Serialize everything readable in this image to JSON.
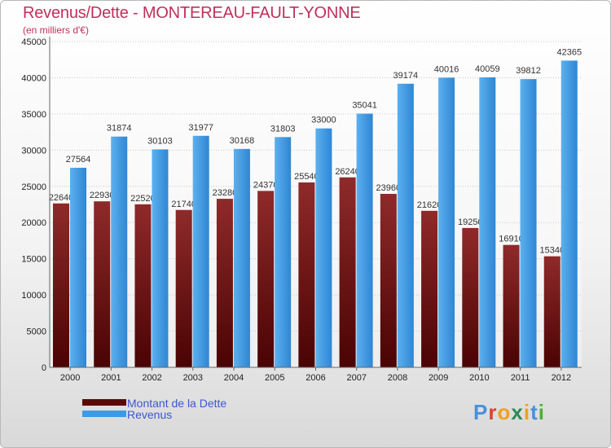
{
  "title": "Revenus/Dette - MONTEREAU-FAULT-YONNE",
  "subtitle": "(en milliers d'€)",
  "logo": {
    "letters": [
      "P",
      "r",
      "o",
      "x",
      "i",
      "t",
      "i"
    ],
    "colors": [
      "#4a90d9",
      "#d7452f",
      "#f0a020",
      "#2e8b57",
      "#f0a020",
      "#4a90d9",
      "#4fae3c"
    ]
  },
  "colors": {
    "dette": "#7a1010",
    "revenus": "#3d9be6",
    "axis_text": "#222222",
    "value_text": "#333333"
  },
  "chart_data": {
    "type": "bar",
    "categories": [
      "2000",
      "2001",
      "2002",
      "2003",
      "2004",
      "2005",
      "2006",
      "2007",
      "2008",
      "2009",
      "2010",
      "2011",
      "2012"
    ],
    "series": [
      {
        "name": "Montant de la Dette",
        "values": [
          22640,
          22930,
          22520,
          21740,
          23280,
          24370,
          25540,
          26240,
          23960,
          21620,
          19250,
          16910,
          15340
        ],
        "labels": [
          "22640",
          "22930",
          "22520",
          "21740",
          "23280",
          "24370",
          "25540",
          "26240",
          "23960",
          "21620",
          "19250",
          "16910",
          "15340"
        ]
      },
      {
        "name": "Revenus",
        "values": [
          27564,
          31874,
          30103,
          31977,
          30168,
          31803,
          33000,
          35041,
          39174,
          40016,
          40059,
          39812,
          42365
        ],
        "labels": [
          "27564",
          "31874",
          "30103",
          "31977",
          "30168",
          "31803",
          "33000",
          "35041",
          "39174",
          "40016",
          "40059",
          "39812",
          "42365"
        ]
      }
    ],
    "ylim": [
      0,
      45000
    ],
    "yticks": [
      "0",
      "5000",
      "10000",
      "15000",
      "20000",
      "25000",
      "30000",
      "35000",
      "40000",
      "45000"
    ],
    "grid": true,
    "legend": "bottom-left"
  }
}
